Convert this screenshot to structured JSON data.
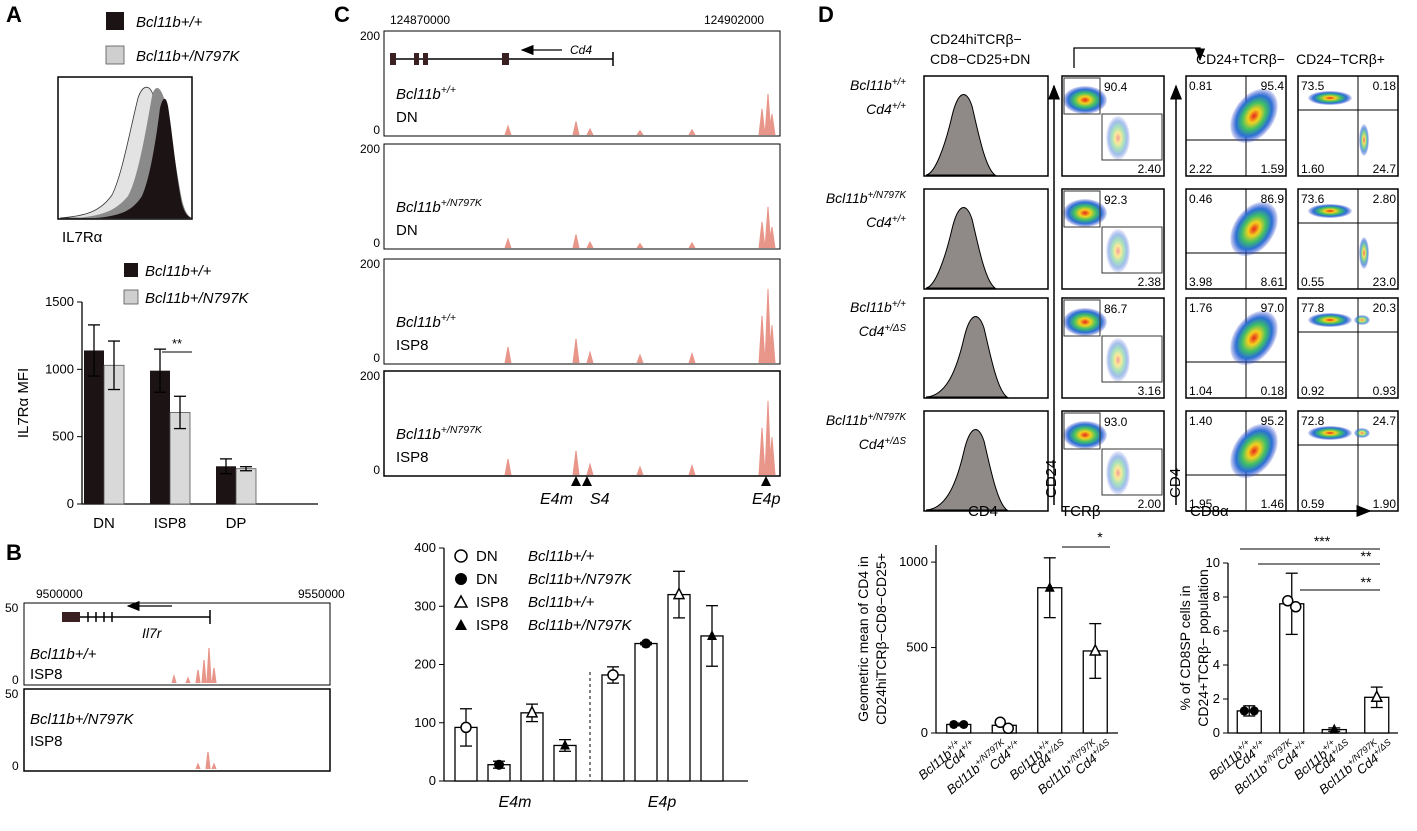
{
  "colors": {
    "dark": "#1c1414",
    "light": "#d9d9d9",
    "track": "#e8958a",
    "hist": "#8f8a87"
  },
  "panelA": {
    "label": "A",
    "legend_wt": "Bcl11b+/+",
    "legend_mut": "Bcl11b+/N797K",
    "axis_label": "IL7Rα",
    "chart_data": {
      "type": "bar",
      "categories": [
        "DN",
        "ISP8",
        "DP"
      ],
      "series": [
        {
          "name": "Bcl11b+/+",
          "values": [
            1140,
            990,
            280
          ],
          "errors": [
            190,
            160,
            55
          ]
        },
        {
          "name": "Bcl11b+/N797K",
          "values": [
            1030,
            680,
            262
          ],
          "errors": [
            180,
            120,
            15
          ]
        }
      ],
      "ylabel": "IL7Rα MFI",
      "ylim": [
        0,
        1500
      ],
      "yticks": [
        "0",
        "500",
        "1000",
        "1500"
      ],
      "significance": "**"
    }
  },
  "panelB": {
    "label": "B",
    "coord_left": "9500000",
    "coord_right": "9550000",
    "gene": "Il7r",
    "tracks": [
      {
        "genotype": "Bcl11b+/+",
        "cell": "ISP8",
        "ymax": "50",
        "ymin": "0"
      },
      {
        "genotype": "Bcl11b+/N797K",
        "cell": "ISP8",
        "ymax": "50",
        "ymin": "0"
      }
    ]
  },
  "panelC": {
    "label": "C",
    "coord_left": "124870000",
    "coord_right": "124902000",
    "gene": "Cd4",
    "tracks": [
      {
        "genotype": "Bcl11b+/+",
        "cell": "DN",
        "ymax": "200",
        "ymin": "0"
      },
      {
        "genotype": "Bcl11b+/N797K",
        "cell": "DN",
        "ymax": "200",
        "ymin": "0"
      },
      {
        "genotype": "Bcl11b+/+",
        "cell": "ISP8",
        "ymax": "200",
        "ymin": "0"
      },
      {
        "genotype": "Bcl11b+/N797K",
        "cell": "ISP8",
        "ymax": "200",
        "ymin": "0"
      }
    ],
    "element_labels": [
      "E4m",
      "S4",
      "E4p"
    ],
    "legend": [
      {
        "cell": "DN",
        "genotype": "Bcl11b+/+"
      },
      {
        "cell": "DN",
        "genotype": "Bcl11b+/N797K"
      },
      {
        "cell": "ISP8",
        "genotype": "Bcl11b+/+"
      },
      {
        "cell": "ISP8",
        "genotype": "Bcl11b+/N797K"
      }
    ],
    "chart_data": {
      "type": "bar",
      "groups": [
        "E4m",
        "E4p"
      ],
      "series": [
        {
          "name": "DN Bcl11b+/+",
          "values": [
            92,
            182
          ],
          "errors": [
            32,
            14
          ]
        },
        {
          "name": "DN Bcl11b+/N797K",
          "values": [
            28,
            236
          ],
          "errors": [
            6,
            2
          ]
        },
        {
          "name": "ISP8 Bcl11b+/+",
          "values": [
            117,
            320
          ],
          "errors": [
            15,
            40
          ]
        },
        {
          "name": "ISP8 Bcl11b+/N797K",
          "values": [
            61,
            249
          ],
          "errors": [
            10,
            52
          ]
        }
      ],
      "ylim": [
        0,
        400
      ],
      "yticks": [
        "0",
        "100",
        "200",
        "300",
        "400"
      ]
    }
  },
  "panelD": {
    "label": "D",
    "gate_title_line1": "CD24hiTCRβ−",
    "gate_title_line2": "CD8−CD25+DN",
    "right_title_1": "CD24+TCRβ−",
    "right_title_2": "CD24−TCRβ+",
    "rows": [
      {
        "geno1": "Bcl11b+/+",
        "geno2": "Cd4+/+",
        "gate_top": "90.4",
        "gate_bottom": "2.40",
        "q1": [
          "0.81",
          "95.4",
          "2.22",
          "1.59"
        ],
        "q2": [
          "73.5",
          "0.18",
          "1.60",
          "24.7"
        ]
      },
      {
        "geno1": "Bcl11b+/N797K",
        "geno2": "Cd4+/+",
        "gate_top": "92.3",
        "gate_bottom": "2.38",
        "q1": [
          "0.46",
          "86.9",
          "3.98",
          "8.61"
        ],
        "q2": [
          "73.6",
          "2.80",
          "0.55",
          "23.0"
        ]
      },
      {
        "geno1": "Bcl11b+/+",
        "geno2": "Cd4+/ΔS",
        "gate_top": "86.7",
        "gate_bottom": "3.16",
        "q1": [
          "1.76",
          "97.0",
          "1.04",
          "0.18"
        ],
        "q2": [
          "77.8",
          "20.3",
          "0.92",
          "0.93"
        ]
      },
      {
        "geno1": "Bcl11b+/N797K",
        "geno2": "Cd4+/ΔS",
        "gate_top": "93.0",
        "gate_bottom": "2.00",
        "q1": [
          "1.40",
          "95.2",
          "1.95",
          "1.46"
        ],
        "q2": [
          "72.8",
          "24.7",
          "0.59",
          "1.90"
        ]
      }
    ],
    "axis_cd4": "CD4",
    "axis_cd24": "CD24",
    "axis_tcrb": "TCRβ",
    "axis_cd4_y": "CD4",
    "axis_cd8a": "CD8α",
    "xcats": [
      {
        "geno1": "Bcl11b+/+",
        "geno2": "Cd4+/+"
      },
      {
        "geno1": "Bcl11b+/N797K",
        "geno2": "Cd4+/+"
      },
      {
        "geno1": "Bcl11b+/+",
        "geno2": "Cd4+/ΔS"
      },
      {
        "geno1": "Bcl11b+/N797K",
        "geno2": "Cd4+/ΔS"
      }
    ],
    "chart_geo": {
      "type": "bar",
      "ylabel_line1": "Geometric mean of CD4 in",
      "ylabel_line2": "CD24hiTCRβ−CD8−CD25+",
      "values": [
        50,
        45,
        850,
        480
      ],
      "errors": [
        8,
        5,
        175,
        160
      ],
      "ylim": [
        0,
        1100
      ],
      "yticks": [
        "0",
        "500",
        "1000"
      ],
      "significance": [
        "*"
      ]
    },
    "chart_cd8": {
      "type": "bar",
      "ylabel_line1": "% of CD8SP cells in",
      "ylabel_line2": "CD24+TCRβ− population",
      "values": [
        1.3,
        7.6,
        0.2,
        2.1
      ],
      "errors": [
        0.3,
        1.8,
        0.1,
        0.6
      ],
      "ylim": [
        0,
        10
      ],
      "yticks": [
        "0",
        "2",
        "4",
        "6",
        "8",
        "10"
      ],
      "significance": [
        "***",
        "**",
        "**"
      ]
    }
  }
}
